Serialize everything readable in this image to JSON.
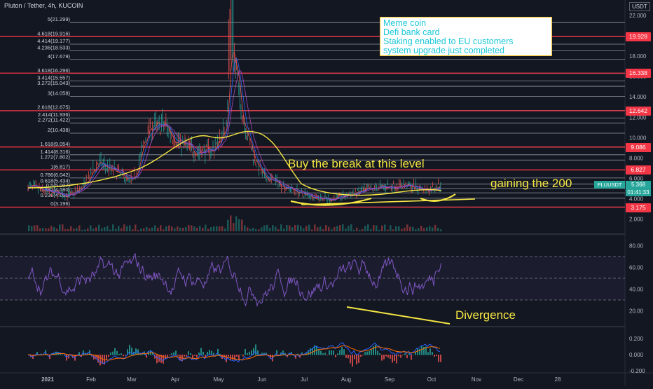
{
  "header": {
    "title": "Pluton / Tether, 4h, KUCOIN",
    "currency": "USDT"
  },
  "price_axis": {
    "ticks": [
      "22.000",
      "20.000",
      "18.000",
      "16.000",
      "14.000",
      "12.000",
      "10.000",
      "8.000",
      "6.000",
      "4.000",
      "2.000"
    ],
    "tags": [
      {
        "label": "19.928",
        "price": 19.928,
        "color": "#f23645"
      },
      {
        "label": "16.338",
        "price": 16.338,
        "color": "#f23645"
      },
      {
        "label": "12.642",
        "price": 12.642,
        "color": "#f23645"
      },
      {
        "label": "9.086",
        "price": 9.086,
        "color": "#f23645"
      },
      {
        "label": "6.827",
        "price": 6.827,
        "color": "#f23645"
      },
      {
        "label": "3.175",
        "price": 3.175,
        "color": "#f23645"
      }
    ],
    "current": {
      "symbol": "PLUUSDT",
      "price": "5.368",
      "countdown": "01:41:33",
      "color": "#26a69a"
    }
  },
  "fib_levels": [
    {
      "label": "5(21.299)",
      "price": 21.299
    },
    {
      "label": "4.618(19.916)",
      "price": 19.916
    },
    {
      "label": "4.414(19.177)",
      "price": 19.177
    },
    {
      "label": "4.236(18.533)",
      "price": 18.533
    },
    {
      "label": "4(17.679)",
      "price": 17.679
    },
    {
      "label": "3.618(16.296)",
      "price": 16.296
    },
    {
      "label": "3.414(15.557)",
      "price": 15.557
    },
    {
      "label": "3.272(15.043)",
      "price": 15.043
    },
    {
      "label": "3(14.058)",
      "price": 14.058
    },
    {
      "label": "2.618(12.675)",
      "price": 12.675
    },
    {
      "label": "2.414(11.936)",
      "price": 11.936
    },
    {
      "label": "2.272(11.422)",
      "price": 11.422
    },
    {
      "label": "2(10.438)",
      "price": 10.438
    },
    {
      "label": "1.618(9.054)",
      "price": 9.054
    },
    {
      "label": "1.414(8.316)",
      "price": 8.316
    },
    {
      "label": "1.272(7.802)",
      "price": 7.802
    },
    {
      "label": "1(6.817)",
      "price": 6.817
    },
    {
      "label": "0.786(6.042)",
      "price": 6.042
    },
    {
      "label": "0.618(5.434)",
      "price": 5.434
    },
    {
      "label": "0.5(5.007)",
      "price": 5.007
    },
    {
      "label": "0.382(4.580)",
      "price": 4.58
    },
    {
      "label": "0.236(4.051)",
      "price": 4.051
    },
    {
      "label": "0(3.196)",
      "price": 3.196
    }
  ],
  "notes_box": [
    "Meme coin",
    "Defi bank card",
    "Staking enabled to EU customers",
    "system upgrade just completed"
  ],
  "annotations": {
    "break_level": "Buy the break at this level",
    "ma200": "gaining the 200",
    "divergence": "Divergence"
  },
  "rsi_axis": [
    "80.00",
    "60.00",
    "40.00",
    "20.00"
  ],
  "macd_axis": [
    "0.200",
    "0.000",
    "-0.200"
  ],
  "time_axis": [
    "2021",
    "Feb",
    "Mar",
    "Apr",
    "May",
    "Jun",
    "Jul",
    "Aug",
    "Sep",
    "Oct",
    "Nov",
    "Dec",
    "28"
  ],
  "colors": {
    "background": "#131722",
    "fib_line": "#b2b5be",
    "red_level": "#f23645",
    "annotation": "#f5e642",
    "rsi": "#7e57c2"
  }
}
